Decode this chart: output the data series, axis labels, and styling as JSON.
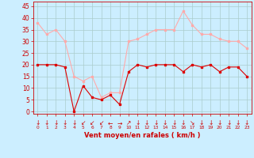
{
  "x": [
    0,
    1,
    2,
    3,
    4,
    5,
    6,
    7,
    8,
    9,
    10,
    11,
    12,
    13,
    14,
    15,
    16,
    17,
    18,
    19,
    20,
    21,
    22,
    23
  ],
  "wind_avg": [
    20,
    20,
    20,
    19,
    0,
    11,
    6,
    5,
    7,
    3,
    17,
    20,
    19,
    20,
    20,
    20,
    17,
    20,
    19,
    20,
    17,
    19,
    19,
    15
  ],
  "wind_gust": [
    38,
    33,
    35,
    30,
    15,
    13,
    15,
    6,
    8,
    8,
    30,
    31,
    33,
    35,
    35,
    35,
    43,
    37,
    33,
    33,
    31,
    30,
    30,
    27
  ],
  "line_color_avg": "#dd0000",
  "line_color_gust": "#ffaaaa",
  "bg_color": "#cceeff",
  "grid_color": "#aacccc",
  "xlabel": "Vent moyen/en rafales ( km/h )",
  "xlabel_color": "#cc0000",
  "ylabel_values": [
    0,
    5,
    10,
    15,
    20,
    25,
    30,
    35,
    40,
    45
  ],
  "ylim": [
    -1,
    47
  ],
  "xlim": [
    -0.5,
    23.5
  ],
  "tick_color": "#cc0000",
  "arrow_dirs": [
    "↓",
    "↓",
    "↓",
    "↓",
    "↓",
    "↙",
    "↙",
    "↙",
    "←",
    "→",
    "↗",
    "↓",
    "↓",
    "↓",
    "↓",
    "↓",
    "↓",
    "↘",
    "↓",
    "↓",
    "↓",
    "↓",
    "↓",
    "↓"
  ]
}
